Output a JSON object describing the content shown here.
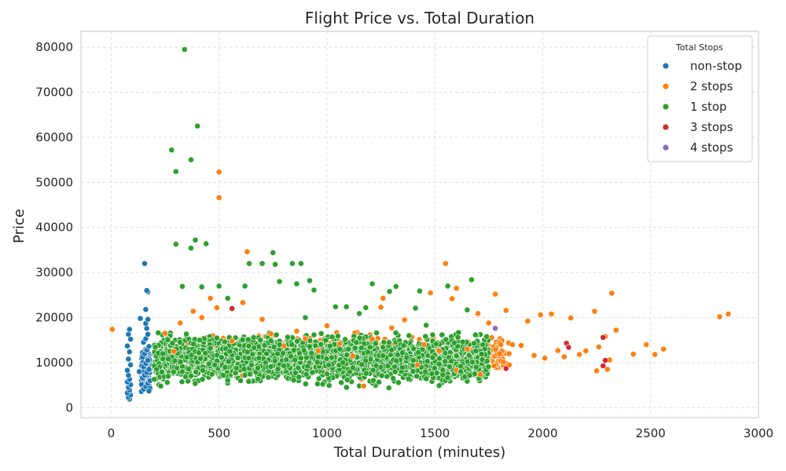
{
  "chart_data": {
    "type": "scatter",
    "title": "Flight Price vs. Total Duration",
    "xlabel": "Total Duration (minutes)",
    "ylabel": "Price",
    "xlim": [
      -140,
      3000
    ],
    "ylim": [
      -2200,
      83500
    ],
    "xticks": [
      0,
      500,
      1000,
      1500,
      2000,
      2500,
      3000
    ],
    "yticks": [
      0,
      10000,
      20000,
      30000,
      40000,
      50000,
      60000,
      70000,
      80000
    ],
    "grid": true,
    "legend": {
      "title": "Total Stops",
      "position": "top-right"
    },
    "series": [
      {
        "name": "non-stop",
        "color": "#1f77b4",
        "points": [
          [
            85,
            1900
          ],
          [
            80,
            2300
          ],
          [
            90,
            2800
          ],
          [
            75,
            3300
          ],
          [
            85,
            3900
          ],
          [
            80,
            4500
          ],
          [
            90,
            5100
          ],
          [
            75,
            5700
          ],
          [
            85,
            6300
          ],
          [
            80,
            7200
          ],
          [
            75,
            8300
          ],
          [
            90,
            9500
          ],
          [
            80,
            10800
          ],
          [
            85,
            12400
          ],
          [
            75,
            13700
          ],
          [
            90,
            15200
          ],
          [
            80,
            16300
          ],
          [
            85,
            17400
          ],
          [
            140,
            3600
          ],
          [
            150,
            4100
          ],
          [
            160,
            4700
          ],
          [
            170,
            5400
          ],
          [
            180,
            6000
          ],
          [
            145,
            6600
          ],
          [
            155,
            7200
          ],
          [
            165,
            7800
          ],
          [
            175,
            8500
          ],
          [
            150,
            9100
          ],
          [
            160,
            9800
          ],
          [
            170,
            10500
          ],
          [
            145,
            11200
          ],
          [
            155,
            12000
          ],
          [
            165,
            12800
          ],
          [
            175,
            13600
          ],
          [
            150,
            14500
          ],
          [
            160,
            15300
          ],
          [
            170,
            16300
          ],
          [
            165,
            17600
          ],
          [
            160,
            18700
          ],
          [
            170,
            19600
          ],
          [
            160,
            21800
          ],
          [
            170,
            25700
          ],
          [
            165,
            26000
          ],
          [
            155,
            32000
          ],
          [
            135,
            19800
          ],
          [
            130,
            8000
          ],
          [
            180,
            4300
          ],
          [
            175,
            3700
          ]
        ]
      },
      {
        "name": "2 stops",
        "color": "#ff7f0e",
        "points": [
          [
            5,
            17400
          ],
          [
            250,
            16500
          ],
          [
            290,
            12500
          ],
          [
            320,
            18800
          ],
          [
            380,
            21400
          ],
          [
            420,
            20000
          ],
          [
            460,
            24300
          ],
          [
            490,
            22200
          ],
          [
            500,
            52300
          ],
          [
            500,
            46600
          ],
          [
            560,
            14800
          ],
          [
            610,
            23300
          ],
          [
            630,
            34600
          ],
          [
            700,
            19600
          ],
          [
            740,
            16400
          ],
          [
            800,
            13700
          ],
          [
            860,
            17000
          ],
          [
            900,
            15300
          ],
          [
            960,
            12600
          ],
          [
            1000,
            18200
          ],
          [
            1060,
            14200
          ],
          [
            1120,
            11500
          ],
          [
            1170,
            4800
          ],
          [
            1210,
            15200
          ],
          [
            1260,
            24300
          ],
          [
            1300,
            17700
          ],
          [
            1360,
            19500
          ],
          [
            1400,
            10500
          ],
          [
            1450,
            14000
          ],
          [
            1480,
            25500
          ],
          [
            1520,
            12600
          ],
          [
            1550,
            32000
          ],
          [
            1580,
            24200
          ],
          [
            1600,
            26500
          ],
          [
            1650,
            13000
          ],
          [
            1700,
            20900
          ],
          [
            1750,
            18800
          ],
          [
            1780,
            25200
          ],
          [
            1800,
            12000
          ],
          [
            1830,
            21600
          ],
          [
            1860,
            14000
          ],
          [
            1900,
            13800
          ],
          [
            1930,
            19200
          ],
          [
            1960,
            11600
          ],
          [
            1990,
            20600
          ],
          [
            2010,
            11000
          ],
          [
            2040,
            20800
          ],
          [
            2070,
            12700
          ],
          [
            2100,
            11300
          ],
          [
            2130,
            19900
          ],
          [
            2170,
            11800
          ],
          [
            2200,
            12600
          ],
          [
            2240,
            21400
          ],
          [
            2250,
            8200
          ],
          [
            2260,
            13500
          ],
          [
            2290,
            15800
          ],
          [
            2300,
            8500
          ],
          [
            2310,
            10600
          ],
          [
            2320,
            25400
          ],
          [
            2340,
            17200
          ],
          [
            2420,
            11900
          ],
          [
            2480,
            14000
          ],
          [
            2520,
            11800
          ],
          [
            2560,
            13000
          ],
          [
            2820,
            20200
          ],
          [
            2860,
            20800
          ],
          [
            1250,
            22300
          ],
          [
            1420,
            9500
          ],
          [
            1600,
            8300
          ],
          [
            1710,
            7400
          ]
        ]
      },
      {
        "name": "1 stop",
        "color": "#2ca02c",
        "points": [
          [
            200,
            6300
          ],
          [
            230,
            4800
          ],
          [
            260,
            5600
          ],
          [
            280,
            57200
          ],
          [
            300,
            52400
          ],
          [
            300,
            36300
          ],
          [
            330,
            26900
          ],
          [
            350,
            11200
          ],
          [
            370,
            35400
          ],
          [
            370,
            55000
          ],
          [
            390,
            37200
          ],
          [
            400,
            62500
          ],
          [
            420,
            26800
          ],
          [
            440,
            36400
          ],
          [
            340,
            79500
          ],
          [
            460,
            13200
          ],
          [
            480,
            9500
          ],
          [
            500,
            27000
          ],
          [
            520,
            7200
          ],
          [
            540,
            24300
          ],
          [
            560,
            11700
          ],
          [
            600,
            6000
          ],
          [
            620,
            27000
          ],
          [
            640,
            32000
          ],
          [
            660,
            15600
          ],
          [
            680,
            8800
          ],
          [
            700,
            32000
          ],
          [
            720,
            12000
          ],
          [
            750,
            34400
          ],
          [
            760,
            31800
          ],
          [
            780,
            28000
          ],
          [
            800,
            9300
          ],
          [
            840,
            32000
          ],
          [
            860,
            27500
          ],
          [
            880,
            32000
          ],
          [
            900,
            20000
          ],
          [
            920,
            28200
          ],
          [
            940,
            26100
          ],
          [
            960,
            11300
          ],
          [
            1000,
            7500
          ],
          [
            1040,
            22400
          ],
          [
            1060,
            13000
          ],
          [
            1090,
            22400
          ],
          [
            1120,
            8900
          ],
          [
            1150,
            20900
          ],
          [
            1180,
            22200
          ],
          [
            1210,
            27500
          ],
          [
            1230,
            16600
          ],
          [
            1260,
            13400
          ],
          [
            1290,
            25800
          ],
          [
            1320,
            26900
          ],
          [
            1350,
            12200
          ],
          [
            1380,
            16000
          ],
          [
            1410,
            22100
          ],
          [
            1430,
            25900
          ],
          [
            1460,
            18300
          ],
          [
            1490,
            11100
          ],
          [
            1520,
            9700
          ],
          [
            1560,
            27000
          ],
          [
            1590,
            14400
          ],
          [
            1620,
            8000
          ],
          [
            1650,
            21700
          ],
          [
            1670,
            28400
          ],
          [
            1690,
            12600
          ],
          [
            1720,
            10700
          ],
          [
            1740,
            15800
          ],
          [
            330,
            8000
          ],
          [
            410,
            15000
          ],
          [
            550,
            12500
          ],
          [
            650,
            9500
          ],
          [
            780,
            14000
          ],
          [
            880,
            11000
          ],
          [
            1100,
            13000
          ],
          [
            1250,
            9000
          ],
          [
            1400,
            10500
          ],
          [
            1600,
            11500
          ]
        ]
      },
      {
        "name": "3 stops",
        "color": "#d62728",
        "points": [
          [
            560,
            22000
          ],
          [
            1830,
            8700
          ],
          [
            2110,
            14300
          ],
          [
            2120,
            13400
          ],
          [
            2280,
            15600
          ],
          [
            2290,
            10500
          ],
          [
            2280,
            9300
          ]
        ]
      },
      {
        "name": "4 stops",
        "color": "#9467bd",
        "points": [
          [
            1780,
            17600
          ]
        ]
      }
    ],
    "dense_clusters": [
      {
        "series": "1 stop",
        "x_range": [
          200,
          1750
        ],
        "y_range": [
          4000,
          17500
        ]
      },
      {
        "series": "2 stops",
        "x_range": [
          350,
          1850
        ],
        "y_range": [
          5500,
          17500
        ]
      },
      {
        "series": "non-stop",
        "x_range": [
          140,
          180
        ],
        "y_range": [
          3500,
          14000
        ]
      }
    ]
  }
}
